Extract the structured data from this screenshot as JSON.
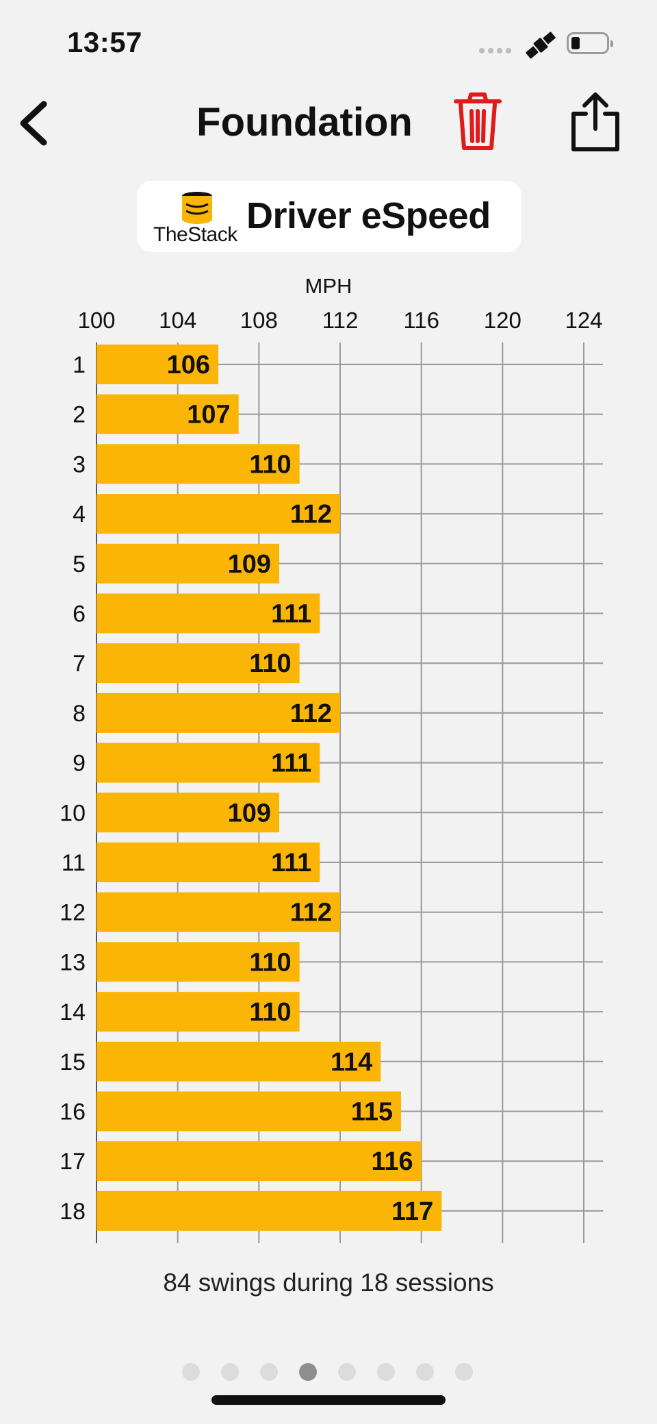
{
  "status": {
    "time": "13:57"
  },
  "header": {
    "title": "Foundation"
  },
  "badge": {
    "logo_text": "TheStack",
    "title": "Driver eSpeed"
  },
  "chart_data": {
    "type": "bar",
    "orientation": "horizontal",
    "xlabel": "MPH",
    "xlim": [
      100,
      124
    ],
    "xticks": [
      100,
      104,
      108,
      112,
      116,
      120,
      124
    ],
    "categories": [
      "1",
      "2",
      "3",
      "4",
      "5",
      "6",
      "7",
      "8",
      "9",
      "10",
      "11",
      "12",
      "13",
      "14",
      "15",
      "16",
      "17",
      "18"
    ],
    "values": [
      106,
      107,
      110,
      112,
      109,
      111,
      110,
      112,
      111,
      109,
      111,
      112,
      110,
      110,
      114,
      115,
      116,
      117
    ],
    "bar_color": "#fbb507",
    "grid": true
  },
  "summary": "84 swings during 18 sessions",
  "pager": {
    "count": 8,
    "active_index": 3
  },
  "colors": {
    "background": "#f2f2f2",
    "accent": "#fbb507",
    "danger": "#e01b1b"
  }
}
